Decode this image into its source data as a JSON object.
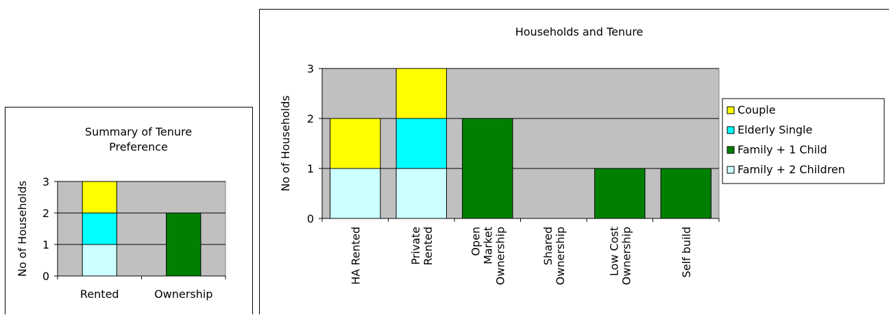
{
  "colors": {
    "plot_bg": "#C0C0C0",
    "Couple": "#FFFF00",
    "Elderly Single": "#00FFFF",
    "Family + 1 Child": "#008000",
    "Family + 2 Children": "#CCFFFF"
  },
  "chart_data": [
    {
      "type": "bar",
      "stacked": true,
      "title": "Summary of Tenure Preference",
      "title_lines": [
        "Summary of Tenure",
        "Preference"
      ],
      "xlabel": "",
      "ylabel": "No of Households",
      "ylim": [
        0,
        3
      ],
      "yticks": [
        "0",
        "1",
        "2",
        "3"
      ],
      "grid": true,
      "legend": "none",
      "categories": [
        "Rented",
        "Ownership"
      ],
      "series": [
        {
          "key": "Family + 2 Children",
          "values": [
            1,
            0
          ]
        },
        {
          "key": "Elderly Single",
          "values": [
            1,
            0
          ]
        },
        {
          "key": "Couple",
          "values": [
            1,
            0
          ]
        },
        {
          "key": "Family + 1 Child",
          "values": [
            0,
            2
          ]
        }
      ]
    },
    {
      "type": "bar",
      "stacked": true,
      "title": "Households and Tenure",
      "xlabel": "",
      "ylabel": "No of Households",
      "ylim": [
        0,
        3
      ],
      "yticks": [
        "0",
        "1",
        "2",
        "3"
      ],
      "grid": true,
      "legend": "right",
      "categories": [
        "HA Rented",
        "Private Rented",
        "Open Market Ownership",
        "Shared Ownership",
        "Low Cost Ownership",
        "Self build"
      ],
      "category_lines": [
        [
          "HA Rented"
        ],
        [
          "Private",
          "Rented"
        ],
        [
          "Open",
          "Market",
          "Ownership"
        ],
        [
          "Shared",
          "Ownership"
        ],
        [
          "Low Cost",
          "Ownership"
        ],
        [
          "Self build"
        ]
      ],
      "series": [
        {
          "name": "Family + 2 Children",
          "values": [
            1,
            1,
            0,
            0,
            0,
            0
          ]
        },
        {
          "name": "Elderly Single",
          "values": [
            0,
            1,
            0,
            0,
            0,
            0
          ]
        },
        {
          "name": "Couple",
          "values": [
            1,
            1,
            0,
            0,
            0,
            0
          ]
        },
        {
          "name": "Family + 1 Child",
          "values": [
            0,
            0,
            2,
            0,
            1,
            1
          ]
        }
      ],
      "legend_items": [
        "Couple",
        "Elderly Single",
        "Family + 1 Child",
        "Family + 2 Children"
      ]
    }
  ]
}
